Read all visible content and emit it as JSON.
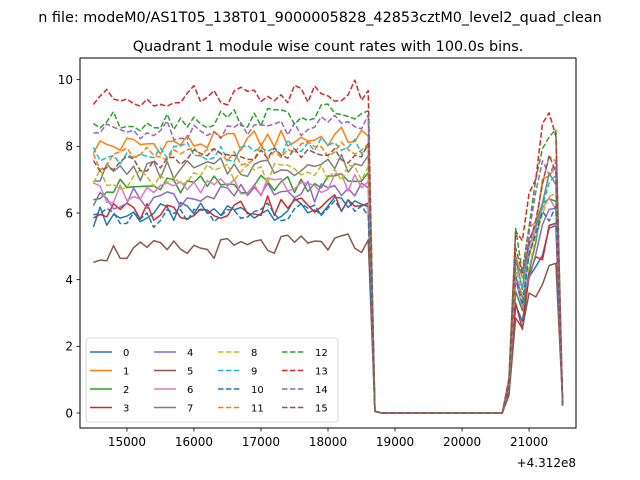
{
  "figure": {
    "suptitle": "n file: modeM0/AS1T05_138T01_9000005828_42853cztM0_level2_quad_clean",
    "title": "Quadrant 1 module wise count rates with 100.0s bins.",
    "offset_text": "+4.312e8"
  },
  "chart_data": {
    "type": "line",
    "title": "Quadrant 1 module wise count rates with 100.0s bins.",
    "x_offset_label": "+4.312e8",
    "xlim": [
      14300,
      21700
    ],
    "ylim": [
      -0.45,
      10.65
    ],
    "xticks": [
      15000,
      16000,
      17000,
      18000,
      19000,
      20000,
      21000
    ],
    "xtick_labels": [
      "15000",
      "16000",
      "17000",
      "18000",
      "19000",
      "20000",
      "21000"
    ],
    "yticks": [
      0,
      2,
      4,
      6,
      8,
      10
    ],
    "ytick_labels": [
      "0",
      "2",
      "4",
      "6",
      "8",
      "10"
    ],
    "grid": false,
    "legend_location": "lower-left",
    "legend_columns": 4,
    "x_start": 14500,
    "x_step": 100,
    "gap": {
      "start": 18800,
      "end": 20600,
      "value": 0
    },
    "series": [
      {
        "name": "0",
        "color": "#1f77b4",
        "dash": "solid",
        "base1": 5.9,
        "base2": 5.2
      },
      {
        "name": "1",
        "color": "#ff7f0e",
        "dash": "solid",
        "base1": 8.0,
        "base2": 7.0
      },
      {
        "name": "2",
        "color": "#2ca02c",
        "dash": "solid",
        "base1": 6.7,
        "base2": 6.3
      },
      {
        "name": "3",
        "color": "#d62728",
        "dash": "solid",
        "base1": 6.0,
        "base2": 5.3
      },
      {
        "name": "4",
        "color": "#9467bd",
        "dash": "solid",
        "base1": 6.4,
        "base2": 6.0
      },
      {
        "name": "5",
        "color": "#8c564b",
        "dash": "solid",
        "base1": 4.8,
        "base2": 4.4
      },
      {
        "name": "6",
        "color": "#e377c2",
        "dash": "solid",
        "base1": 6.6,
        "base2": 6.5
      },
      {
        "name": "7",
        "color": "#7f7f7f",
        "dash": "solid",
        "base1": 7.2,
        "base2": 7.0
      },
      {
        "name": "8",
        "color": "#bcbd22",
        "dash": "dashed",
        "base1": 7.0,
        "base2": 6.6
      },
      {
        "name": "9",
        "color": "#17becf",
        "dash": "dashed",
        "base1": 7.7,
        "base2": 6.8
      },
      {
        "name": "10",
        "color": "#1f77b4",
        "dash": "dashed",
        "base1": 5.8,
        "base2": 6.2
      },
      {
        "name": "11",
        "color": "#ff7f0e",
        "dash": "dashed",
        "base1": 7.6,
        "base2": 7.3
      },
      {
        "name": "12",
        "color": "#2ca02c",
        "dash": "dashed",
        "base1": 8.7,
        "base2": 8.3
      },
      {
        "name": "13",
        "color": "#d62728",
        "dash": "dashed",
        "base1": 9.4,
        "base2": 8.7
      },
      {
        "name": "14",
        "color": "#9467bd",
        "dash": "dashed",
        "base1": 8.4,
        "base2": 7.6
      },
      {
        "name": "15",
        "color": "#8c564b",
        "dash": "dashed",
        "base1": 7.5,
        "base2": 7.4
      }
    ]
  }
}
